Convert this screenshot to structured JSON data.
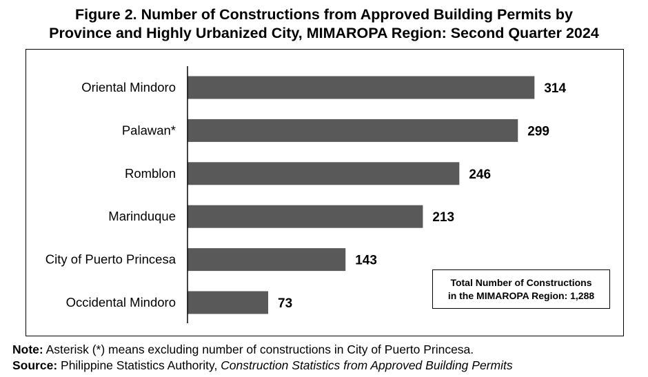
{
  "title": {
    "line1": "Figure 2. Number of Constructions from Approved Building Permits by",
    "line2": "Province and Highly Urbanized City, MIMAROPA Region: Second Quarter 2024"
  },
  "chart_data": {
    "type": "bar",
    "orientation": "horizontal",
    "categories": [
      "Oriental Mindoro",
      "Palawan*",
      "Romblon",
      "Marinduque",
      "City of Puerto Princesa",
      "Occidental Mindoro"
    ],
    "values": [
      314,
      299,
      246,
      213,
      143,
      73
    ],
    "data_labels": [
      "314",
      "299",
      "246",
      "213",
      "143",
      "73"
    ],
    "xlim": [
      0,
      340
    ],
    "bar_color": "#595959",
    "grid": false
  },
  "total_box": {
    "line1": "Total Number of Constructions",
    "line2": "in the MIMAROPA Region: 1,288"
  },
  "notes": {
    "note_label": "Note:",
    "note_text": " Asterisk (*) means excluding number of constructions in City of Puerto Princesa.",
    "source_label": "Source:",
    "source_text": " Philippine Statistics Authority, ",
    "source_italic": "Construction Statistics from Approved Building Permits"
  }
}
